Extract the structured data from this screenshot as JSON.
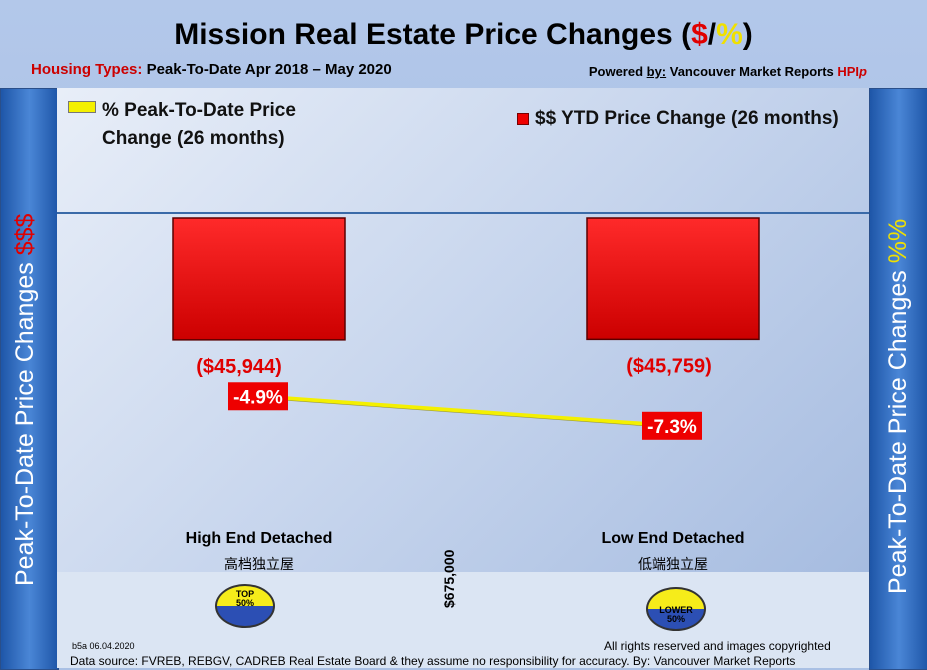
{
  "title": {
    "main": "Mission Real Estate Price Changes (",
    "dollar": "$",
    "slash": "/",
    "pct": "%",
    "close": ")"
  },
  "subtitle": {
    "lead": "Housing Types:",
    "period": "Peak-To-Date Apr 2018 – May 2020"
  },
  "powered": {
    "prefix": "Powered ",
    "by": "by:",
    "name": " Vancouver Market Reports ",
    "hpi": "HPI",
    "p": "p"
  },
  "side_left": {
    "text": "Peak-To-Date Price Changes ",
    "accent": "$$$"
  },
  "side_right": {
    "text": "Peak-To-Date  Price  Changes  ",
    "accent": "%%"
  },
  "legend": {
    "line_label": "% Peak-To-Date Price Change (26 months)",
    "line_label_1": "% Peak-To-Date Price",
    "line_label_2": "Change (26 months)",
    "bar_label": "$$ YTD Price Change (26 months)"
  },
  "chart_data": {
    "type": "bar",
    "categories": [
      "High End Detached",
      "Low End Detached"
    ],
    "categories_cn": [
      "高档独立屋",
      "低端独立屋"
    ],
    "series": [
      {
        "name": "$$ YTD Price Change (26 months)",
        "type": "bar",
        "values": [
          -45944,
          -45759
        ],
        "labels": [
          "($45,944)",
          "($45,759)"
        ]
      },
      {
        "name": "% Peak-To-Date Price Change (26 months)",
        "type": "line",
        "values": [
          -4.9,
          -7.3
        ],
        "labels": [
          "-4.9%",
          "-7.3%"
        ]
      }
    ],
    "colors": {
      "bar": "#e00000",
      "line": "#f4f000",
      "label_bg": "#ee0000"
    }
  },
  "badges": [
    {
      "line1": "TOP",
      "line2": "50%"
    },
    {
      "line1": "LOWER",
      "line2": "50%"
    }
  ],
  "price_point": "$675,000",
  "footer": {
    "code": "b5a 06.04.2020",
    "rights": "All rights reserved and  images copyrighted",
    "source": "Data source: FVREB, REBGV, CADREB Real Estate Board & they assume no responsibility for accuracy. By: Vancouver Market Reports"
  }
}
